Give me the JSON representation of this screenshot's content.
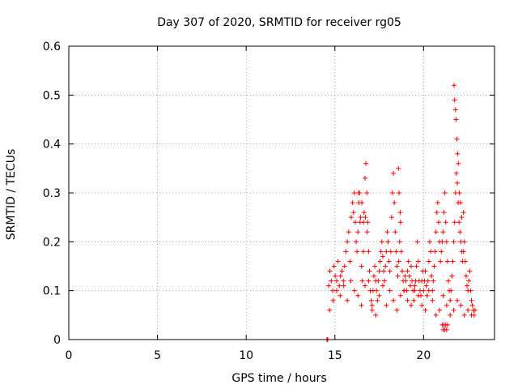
{
  "chart_data": {
    "type": "scatter",
    "title": "Day 307 of 2020, SRMTID for receiver rg05",
    "xlabel": "GPS time / hours",
    "ylabel": "SRMTID / TECUs",
    "xlim": [
      0,
      24
    ],
    "ylim": [
      0,
      0.6
    ],
    "xticks": [
      0,
      5,
      10,
      15,
      20
    ],
    "xtick_labels": [
      "0",
      "5",
      "10",
      "15",
      "20"
    ],
    "yticks": [
      0,
      0.1,
      0.2,
      0.3,
      0.4,
      0.5,
      0.6
    ],
    "ytick_labels": [
      "0",
      "0.1",
      "0.2",
      "0.3",
      "0.4",
      "0.5",
      "0.6"
    ],
    "grid": true,
    "marker": "+",
    "color": "#ff0000",
    "series": [
      {
        "name": "rg05",
        "x": [
          14.55,
          14.6,
          14.65,
          14.72,
          14.8,
          14.88,
          14.95,
          15.02,
          15.1,
          15.18,
          15.25,
          15.32,
          15.4,
          15.48,
          15.55,
          15.62,
          15.7,
          15.78,
          15.85,
          15.92,
          16.0,
          16.05,
          16.1,
          16.15,
          16.2,
          16.25,
          16.3,
          16.35,
          16.4,
          16.45,
          16.5,
          16.55,
          16.6,
          16.65,
          16.7,
          16.75,
          16.8,
          16.85,
          16.9,
          16.95,
          17.0,
          17.05,
          17.1,
          17.15,
          17.2,
          17.25,
          17.3,
          17.35,
          17.4,
          17.45,
          17.5,
          17.55,
          17.6,
          17.65,
          17.7,
          17.75,
          17.8,
          17.85,
          17.9,
          17.95,
          18.0,
          18.05,
          18.1,
          18.15,
          18.2,
          18.25,
          18.3,
          18.35,
          18.4,
          18.45,
          18.5,
          18.55,
          18.6,
          18.65,
          18.7,
          18.75,
          18.8,
          18.85,
          18.9,
          18.95,
          19.0,
          19.05,
          19.1,
          19.15,
          19.2,
          19.25,
          19.3,
          19.35,
          19.4,
          19.45,
          19.5,
          19.55,
          19.6,
          19.65,
          19.7,
          19.75,
          19.8,
          19.85,
          19.9,
          19.95,
          20.0,
          20.05,
          20.1,
          20.15,
          20.2,
          20.25,
          20.3,
          20.35,
          20.4,
          20.45,
          20.5,
          20.55,
          20.6,
          20.65,
          20.7,
          20.75,
          20.8,
          20.85,
          20.9,
          20.95,
          21.0,
          21.05,
          21.1,
          21.15,
          21.2,
          21.25,
          21.3,
          21.35,
          21.4,
          21.45,
          21.5,
          21.55,
          21.6,
          21.65,
          21.7,
          21.75,
          21.8,
          21.85,
          21.9,
          21.95,
          22.0,
          22.05,
          22.1,
          22.15,
          22.2,
          22.25,
          22.3,
          22.35,
          22.4,
          22.45,
          22.5,
          22.55,
          22.6,
          22.65,
          22.7,
          22.75,
          22.8,
          22.85,
          22.9,
          14.7,
          14.9,
          15.1,
          15.3,
          15.5,
          15.7,
          15.9,
          16.1,
          16.3,
          16.5,
          16.7,
          16.9,
          17.1,
          17.3,
          17.5,
          17.7,
          17.9,
          18.1,
          18.3,
          18.5,
          18.7,
          18.9,
          19.1,
          19.3,
          19.5,
          19.7,
          19.9,
          20.1,
          20.3,
          20.5,
          20.7,
          20.9,
          21.1,
          21.3,
          21.5,
          21.7,
          21.9,
          22.1,
          22.3,
          22.5,
          22.7,
          16.32,
          16.42,
          16.52,
          16.62,
          16.72,
          16.82,
          18.58,
          18.62,
          18.68,
          21.72,
          21.75,
          21.8,
          21.83,
          21.88,
          21.92,
          21.96,
          22.02,
          22.08,
          22.15,
          22.25,
          21.05,
          21.1,
          21.15,
          21.2,
          21.25,
          21.3,
          21.35
        ],
        "y": [
          0.0,
          0.0,
          0.11,
          0.14,
          0.12,
          0.1,
          0.15,
          0.13,
          0.12,
          0.16,
          0.11,
          0.13,
          0.14,
          0.12,
          0.15,
          0.18,
          0.2,
          0.22,
          0.16,
          0.25,
          0.28,
          0.26,
          0.3,
          0.24,
          0.2,
          0.18,
          0.22,
          0.28,
          0.3,
          0.25,
          0.15,
          0.12,
          0.18,
          0.26,
          0.33,
          0.36,
          0.3,
          0.24,
          0.18,
          0.14,
          0.1,
          0.08,
          0.07,
          0.1,
          0.13,
          0.15,
          0.12,
          0.1,
          0.08,
          0.12,
          0.14,
          0.16,
          0.18,
          0.2,
          0.17,
          0.14,
          0.12,
          0.15,
          0.18,
          0.22,
          0.2,
          0.16,
          0.14,
          0.18,
          0.25,
          0.3,
          0.34,
          0.28,
          0.22,
          0.18,
          0.15,
          0.13,
          0.16,
          0.2,
          0.24,
          0.18,
          0.14,
          0.12,
          0.1,
          0.13,
          0.12,
          0.1,
          0.14,
          0.16,
          0.13,
          0.11,
          0.15,
          0.12,
          0.1,
          0.08,
          0.1,
          0.12,
          0.15,
          0.2,
          0.16,
          0.12,
          0.1,
          0.09,
          0.12,
          0.14,
          0.1,
          0.12,
          0.14,
          0.11,
          0.09,
          0.12,
          0.16,
          0.2,
          0.18,
          0.13,
          0.1,
          0.12,
          0.15,
          0.18,
          0.22,
          0.26,
          0.28,
          0.24,
          0.2,
          0.16,
          0.18,
          0.2,
          0.22,
          0.26,
          0.3,
          0.24,
          0.2,
          0.16,
          0.12,
          0.1,
          0.08,
          0.1,
          0.13,
          0.16,
          0.2,
          0.24,
          0.3,
          0.34,
          0.32,
          0.28,
          0.24,
          0.22,
          0.2,
          0.18,
          0.16,
          0.18,
          0.2,
          0.16,
          0.13,
          0.11,
          0.1,
          0.12,
          0.14,
          0.1,
          0.08,
          0.07,
          0.06,
          0.05,
          0.06,
          0.06,
          0.08,
          0.1,
          0.09,
          0.11,
          0.08,
          0.12,
          0.1,
          0.09,
          0.07,
          0.11,
          0.12,
          0.06,
          0.05,
          0.09,
          0.11,
          0.07,
          0.1,
          0.08,
          0.06,
          0.09,
          0.1,
          0.08,
          0.07,
          0.11,
          0.09,
          0.07,
          0.06,
          0.1,
          0.08,
          0.05,
          0.06,
          0.09,
          0.07,
          0.05,
          0.06,
          0.08,
          0.07,
          0.05,
          0.06,
          0.05,
          0.3,
          0.24,
          0.28,
          0.24,
          0.25,
          0.22,
          0.35,
          0.3,
          0.26,
          0.52,
          0.49,
          0.47,
          0.45,
          0.41,
          0.38,
          0.36,
          0.3,
          0.28,
          0.25,
          0.26,
          0.03,
          0.02,
          0.03,
          0.02,
          0.03,
          0.02,
          0.03
        ]
      }
    ]
  }
}
